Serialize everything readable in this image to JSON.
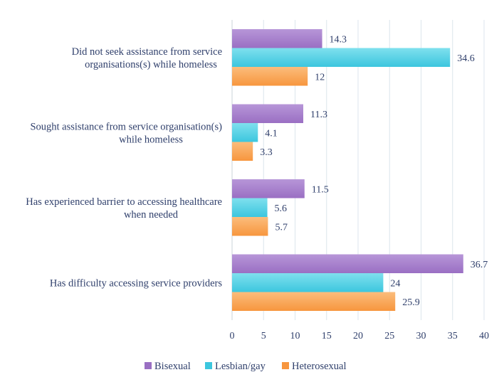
{
  "chart_data": {
    "type": "bar",
    "orientation": "horizontal",
    "categories": [
      [
        "Did not seek assistance from service",
        "organisations(s) while homeless"
      ],
      [
        "Sought assistance from service organisation(s)",
        "while homeless"
      ],
      [
        "Has experienced barrier to accessing healthcare",
        "when needed"
      ],
      [
        "Has difficulty accessing service providers"
      ]
    ],
    "series": [
      {
        "name": "Bisexual",
        "values": [
          14.3,
          11.3,
          11.5,
          36.7
        ],
        "labels": [
          "14.3",
          "11.3",
          "11.5",
          "36.7"
        ],
        "color": "#9a6fc3",
        "color_light": "#b796d8"
      },
      {
        "name": "Lesbian/gay",
        "values": [
          34.6,
          4.1,
          5.6,
          24
        ],
        "labels": [
          "34.6",
          "4.1",
          "5.6",
          "24"
        ],
        "color": "#3cc6de",
        "color_light": "#7fe0ee"
      },
      {
        "name": "Heterosexual",
        "values": [
          12,
          3.3,
          5.7,
          25.9
        ],
        "labels": [
          "12",
          "3.3",
          "5.7",
          "25.9"
        ],
        "color": "#f7963e",
        "color_light": "#fbbd7c"
      }
    ],
    "xlim": [
      0,
      40
    ],
    "xticks": [
      0,
      5,
      10,
      15,
      20,
      25,
      30,
      35,
      40
    ],
    "xtick_labels": [
      "0",
      "5",
      "10",
      "15",
      "20",
      "25",
      "30",
      "35",
      "40"
    ],
    "grid": "vertical",
    "legend": "bottom",
    "title": "",
    "xlabel": "",
    "ylabel": ""
  }
}
